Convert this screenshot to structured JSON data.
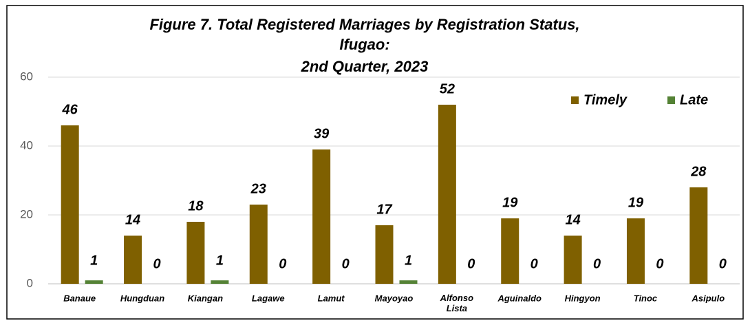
{
  "chart_data": {
    "type": "bar",
    "title": [
      "Figure 7. Total Registered Marriages by Registration Status,",
      "Ifugao:",
      "2nd Quarter, 2023"
    ],
    "categories": [
      "Banaue",
      "Hungduan",
      "Kiangan",
      "Lagawe",
      "Lamut",
      "Mayoyao",
      "Alfonso Lista",
      "Aguinaldo",
      "Hingyon",
      "Tinoc",
      "Asipulo"
    ],
    "series": [
      {
        "name": "Timely",
        "color": "#7f6000",
        "values": [
          46,
          14,
          18,
          23,
          39,
          17,
          52,
          19,
          14,
          19,
          28
        ]
      },
      {
        "name": "Late",
        "color": "#548235",
        "values": [
          1,
          0,
          1,
          0,
          0,
          1,
          0,
          0,
          0,
          0,
          0
        ]
      }
    ],
    "ylim": [
      0,
      60
    ],
    "yticks": [
      0,
      20,
      40,
      60
    ],
    "grid": true,
    "legend": "top-right"
  }
}
